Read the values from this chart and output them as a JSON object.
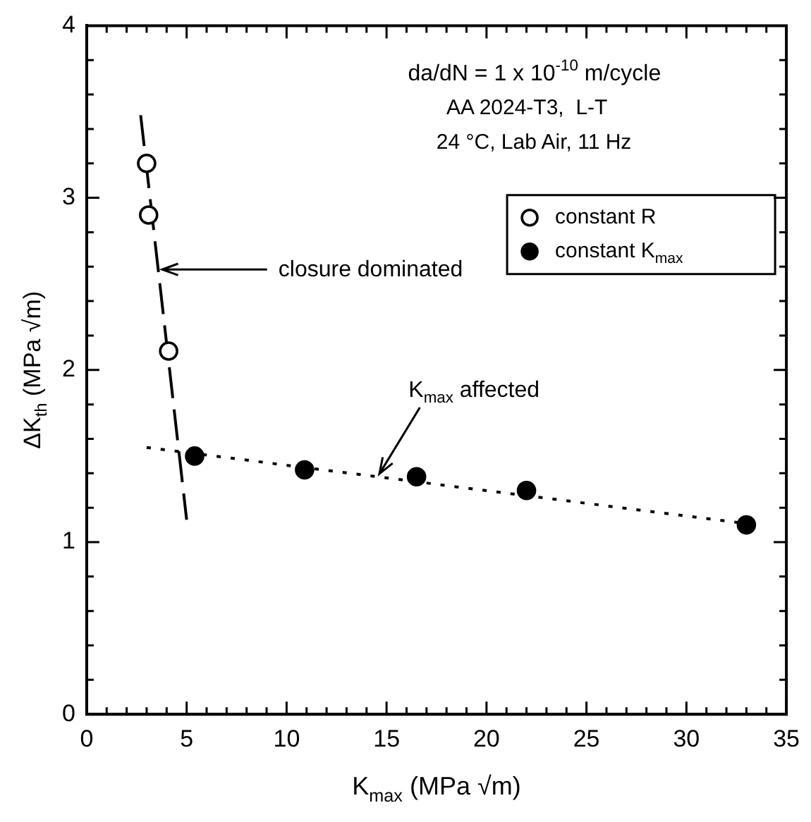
{
  "chart_data": {
    "type": "scatter",
    "xlabel": "K$_{max}$ (MPa √m)",
    "ylabel": "ΔK$_{th}$ (MPa √m)",
    "xlim": [
      0,
      35
    ],
    "xticks": [
      0,
      {
        "value": 1,
        "label": null
      },
      {
        "value": 2,
        "label": null
      },
      {
        "value": 3,
        "label": null
      },
      {
        "value": 4,
        "label": null
      },
      5,
      {
        "value": 6,
        "label": null
      },
      {
        "value": 7,
        "label": null
      },
      {
        "value": 8,
        "label": null
      },
      {
        "value": 9,
        "label": null
      },
      10,
      {
        "value": 11,
        "label": null
      },
      {
        "value": 12,
        "label": null
      },
      {
        "value": 13,
        "label": null
      },
      {
        "value": 14,
        "label": null
      },
      15,
      {
        "value": 16,
        "label": null
      },
      {
        "value": 17,
        "label": null
      },
      {
        "value": 18,
        "label": null
      },
      {
        "value": 19,
        "label": null
      },
      20,
      {
        "value": 21,
        "label": null
      },
      {
        "value": 22,
        "label": null
      },
      {
        "value": 23,
        "label": null
      },
      {
        "value": 24,
        "label": null
      },
      25,
      {
        "value": 26,
        "label": null
      },
      {
        "value": 27,
        "label": null
      },
      {
        "value": 28,
        "label": null
      },
      {
        "value": 29,
        "label": null
      },
      30,
      {
        "value": 31,
        "label": null
      },
      {
        "value": 32,
        "label": null
      },
      {
        "value": 33,
        "label": null
      },
      {
        "value": 34,
        "label": null
      },
      35
    ],
    "ylim": [
      0,
      4
    ],
    "yticks": [
      0,
      {
        "value": 0.2,
        "label": null
      },
      {
        "value": 0.4,
        "label": null
      },
      {
        "value": 0.6,
        "label": null
      },
      {
        "value": 0.8,
        "label": null
      },
      1,
      {
        "value": 1.2,
        "label": null
      },
      {
        "value": 1.4,
        "label": null
      },
      {
        "value": 1.6,
        "label": null
      },
      {
        "value": 1.8,
        "label": null
      },
      2,
      {
        "value": 2.2,
        "label": null
      },
      {
        "value": 2.4,
        "label": null
      },
      {
        "value": 2.6,
        "label": null
      },
      {
        "value": 2.8,
        "label": null
      },
      3,
      {
        "value": 3.2,
        "label": null
      },
      {
        "value": 3.4,
        "label": null
      },
      {
        "value": 3.6,
        "label": null
      },
      {
        "value": 3.8,
        "label": null
      },
      4
    ],
    "grid": false,
    "legend": "top right",
    "series": [
      {
        "type": "line",
        "color": "#000000",
        "x": [
          2.7,
          5.0
        ],
        "values": [
          3.48,
          1.13
        ],
        "marker": "none",
        "line_style": "dashed"
      },
      {
        "type": "line",
        "color": "#000000",
        "x": [
          3,
          33.5
        ],
        "values": [
          1.55,
          1.1
        ],
        "marker": "none",
        "line_style": "dotted"
      },
      {
        "name": "constant R",
        "color": "#ffffff",
        "x": [
          3.0,
          3.1,
          4.1
        ],
        "values": [
          3.2,
          2.9,
          2.11
        ],
        "marker": "circle"
      },
      {
        "name": "constant K$_{max}$",
        "color": "#000000",
        "x": [
          5.4,
          10.9,
          16.5,
          22,
          33
        ],
        "values": [
          1.5,
          1.42,
          1.38,
          1.3,
          1.1
        ],
        "marker": "circle"
      }
    ],
    "annotations": [
      "da/dN = 1 x 10$^{-10}$ m/cycle",
      "AA 2024-T3,  L-T",
      "24 °C, Lab Air, 11 Hz",
      "closure dominated",
      {
        "text": "K$_{max}$ affected",
        "x": 14.5,
        "y": 1.38
      }
    ]
  }
}
